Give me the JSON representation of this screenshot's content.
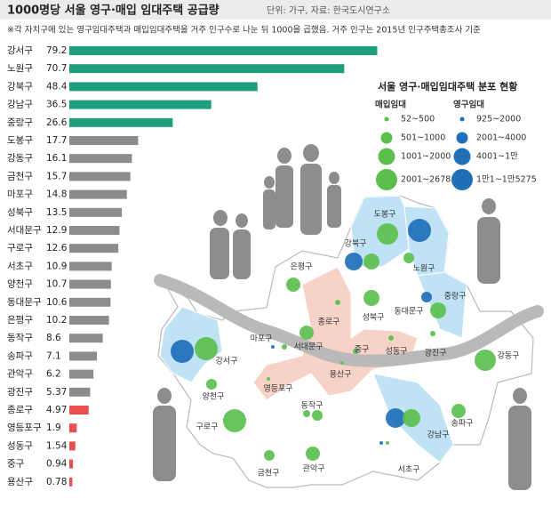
{
  "chart_data": {
    "type": "bar",
    "orientation": "horizontal",
    "title": "1000명당 서울 영구·매입 임대주택 공급량",
    "subtitle": "단위: 가구, 자료: 한국도시연구소",
    "note": "※각 자치구에 있는 영구임대주택과 매입임대주택을 거주 인구수로 나눈 뒤 1000을 곱했음. 거주 인구는 2015년 인구주택총조사 기준",
    "categories": [
      "강서구",
      "노원구",
      "강북구",
      "강남구",
      "중랑구",
      "도봉구",
      "강동구",
      "금천구",
      "마포구",
      "성북구",
      "서대문구",
      "구로구",
      "서초구",
      "양천구",
      "동대문구",
      "은평구",
      "동작구",
      "송파구",
      "관악구",
      "광진구",
      "종로구",
      "영등포구",
      "성동구",
      "중구",
      "용산구"
    ],
    "values": [
      79.2,
      70.7,
      48.4,
      36.5,
      26.6,
      17.7,
      16.1,
      15.7,
      14.8,
      13.5,
      12.9,
      12.6,
      10.9,
      10.7,
      10.6,
      10.2,
      8.6,
      7.1,
      6.2,
      5.37,
      4.97,
      1.9,
      1.54,
      0.94,
      0.78
    ],
    "colors": [
      "#1f9e7c",
      "#1f9e7c",
      "#1f9e7c",
      "#1f9e7c",
      "#1f9e7c",
      "#8c8c8c",
      "#8c8c8c",
      "#8c8c8c",
      "#8c8c8c",
      "#8c8c8c",
      "#8c8c8c",
      "#8c8c8c",
      "#8c8c8c",
      "#8c8c8c",
      "#8c8c8c",
      "#8c8c8c",
      "#8c8c8c",
      "#8c8c8c",
      "#8c8c8c",
      "#8c8c8c",
      "#e8504f",
      "#e8504f",
      "#e8504f",
      "#e8504f",
      "#e8504f"
    ],
    "xlim": [
      0,
      80
    ]
  },
  "map": {
    "title": "서울 영구·매입임대주택 분포 현황",
    "legend_purchase": {
      "title": "매입임대",
      "color": "#5bbf4e",
      "items": [
        "52~500",
        "501~1000",
        "1001~2000",
        "2001~2678"
      ]
    },
    "legend_permanent": {
      "title": "영구임대",
      "color": "#1f6fb8",
      "items": [
        "925~2000",
        "2001~4000",
        "4001~1만",
        "1만1~1만5275"
      ]
    },
    "districts": [
      "도봉구",
      "강북구",
      "노원구",
      "은평구",
      "중랑구",
      "성북구",
      "동대문구",
      "종로구",
      "마포구",
      "서대문구",
      "중구",
      "성동구",
      "광진구",
      "강동구",
      "용산구",
      "강서구",
      "양천구",
      "영등포구",
      "동작구",
      "강남구",
      "송파구",
      "구로구",
      "서초구",
      "관악구",
      "금천구"
    ]
  }
}
